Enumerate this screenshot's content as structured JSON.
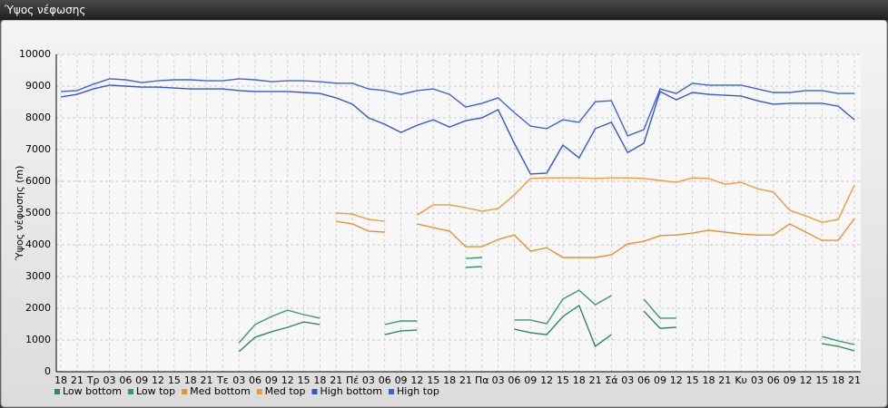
{
  "chart_data": {
    "type": "line",
    "title": "Ύψος νέφωσης",
    "y_label": "Ύψος νέφωσης (m)",
    "categories": [
      "18",
      "21",
      "Τρ",
      "03",
      "06",
      "09",
      "12",
      "15",
      "18",
      "21",
      "Τε",
      "03",
      "06",
      "09",
      "12",
      "15",
      "18",
      "21",
      "Πέ",
      "03",
      "06",
      "09",
      "12",
      "15",
      "18",
      "21",
      "Πα",
      "03",
      "06",
      "09",
      "12",
      "15",
      "18",
      "21",
      "Σά",
      "03",
      "06",
      "09",
      "12",
      "15",
      "18",
      "21",
      "Κυ",
      "03",
      "06",
      "09",
      "12",
      "15",
      "18",
      "21"
    ],
    "ylim": [
      0,
      10000
    ],
    "yticks": [
      0,
      1000,
      2000,
      3000,
      4000,
      5000,
      6000,
      7000,
      8000,
      9000,
      10000
    ],
    "grid": true,
    "series": [
      {
        "name": "Low bottom",
        "color": "#2e8b57",
        "values": [
          null,
          null,
          null,
          null,
          null,
          null,
          null,
          null,
          null,
          null,
          null,
          630,
          1090,
          1260,
          1400,
          1570,
          1490,
          null,
          null,
          null,
          1170,
          1290,
          1310,
          null,
          null,
          3290,
          3310,
          null,
          1340,
          1230,
          1170,
          1740,
          2090,
          800,
          1170,
          null,
          1910,
          1370,
          1400,
          null,
          null,
          null,
          null,
          null,
          null,
          null,
          null,
          890,
          800,
          660
        ]
      },
      {
        "name": "Low top",
        "color": "#3a9a6a",
        "values": [
          null,
          null,
          null,
          null,
          null,
          null,
          null,
          null,
          null,
          null,
          null,
          910,
          1490,
          1740,
          1940,
          1800,
          1690,
          null,
          null,
          null,
          1490,
          1600,
          1600,
          null,
          null,
          3570,
          3600,
          null,
          1630,
          1630,
          1510,
          2290,
          2570,
          2110,
          2400,
          null,
          2290,
          1690,
          1690,
          null,
          null,
          null,
          null,
          null,
          null,
          null,
          null,
          1110,
          970,
          860
        ]
      },
      {
        "name": "Med bottom",
        "color": "#e8902e",
        "values": [
          null,
          null,
          null,
          null,
          null,
          null,
          null,
          null,
          null,
          null,
          null,
          null,
          null,
          null,
          null,
          null,
          null,
          4740,
          4660,
          4430,
          4400,
          null,
          4660,
          4540,
          4430,
          3940,
          3940,
          4170,
          4310,
          3800,
          3910,
          3600,
          3600,
          3600,
          3690,
          4030,
          4110,
          4290,
          4310,
          4370,
          4460,
          4400,
          4340,
          4310,
          4310,
          4660,
          4400,
          4140,
          4140,
          4830
        ]
      },
      {
        "name": "Med top",
        "color": "#f09a3c",
        "values": [
          null,
          null,
          null,
          null,
          null,
          null,
          null,
          null,
          null,
          null,
          null,
          null,
          null,
          null,
          null,
          null,
          null,
          5000,
          4970,
          4800,
          4740,
          null,
          4940,
          5260,
          5260,
          5170,
          5060,
          5140,
          5570,
          6090,
          6110,
          6110,
          6110,
          6090,
          6110,
          6110,
          6090,
          6030,
          5970,
          6110,
          6090,
          5910,
          5970,
          5770,
          5660,
          5090,
          4910,
          4710,
          4800,
          5890
        ]
      },
      {
        "name": "High bottom",
        "color": "#3456d0",
        "values": [
          8660,
          8740,
          8910,
          9030,
          9000,
          8970,
          8970,
          8940,
          8910,
          8910,
          8910,
          8860,
          8830,
          8830,
          8830,
          8800,
          8770,
          8630,
          8430,
          8000,
          7800,
          7540,
          7770,
          7940,
          7710,
          7910,
          8000,
          8260,
          7200,
          6230,
          6260,
          7140,
          6740,
          7660,
          7860,
          6910,
          7200,
          8830,
          8570,
          8800,
          8740,
          8710,
          8690,
          8540,
          8430,
          8460,
          8460,
          8460,
          8370,
          7940
        ]
      },
      {
        "name": "High top",
        "color": "#3d63d8",
        "values": [
          8830,
          8860,
          9060,
          9230,
          9200,
          9110,
          9170,
          9200,
          9200,
          9170,
          9170,
          9230,
          9200,
          9140,
          9170,
          9170,
          9140,
          9090,
          9090,
          8910,
          8860,
          8740,
          8860,
          8910,
          8740,
          8340,
          8460,
          8630,
          8170,
          7740,
          7660,
          7940,
          7860,
          8510,
          8540,
          7430,
          7630,
          8910,
          8770,
          9090,
          9030,
          9030,
          9030,
          8910,
          8800,
          8800,
          8860,
          8860,
          8770,
          8770
        ]
      }
    ]
  }
}
